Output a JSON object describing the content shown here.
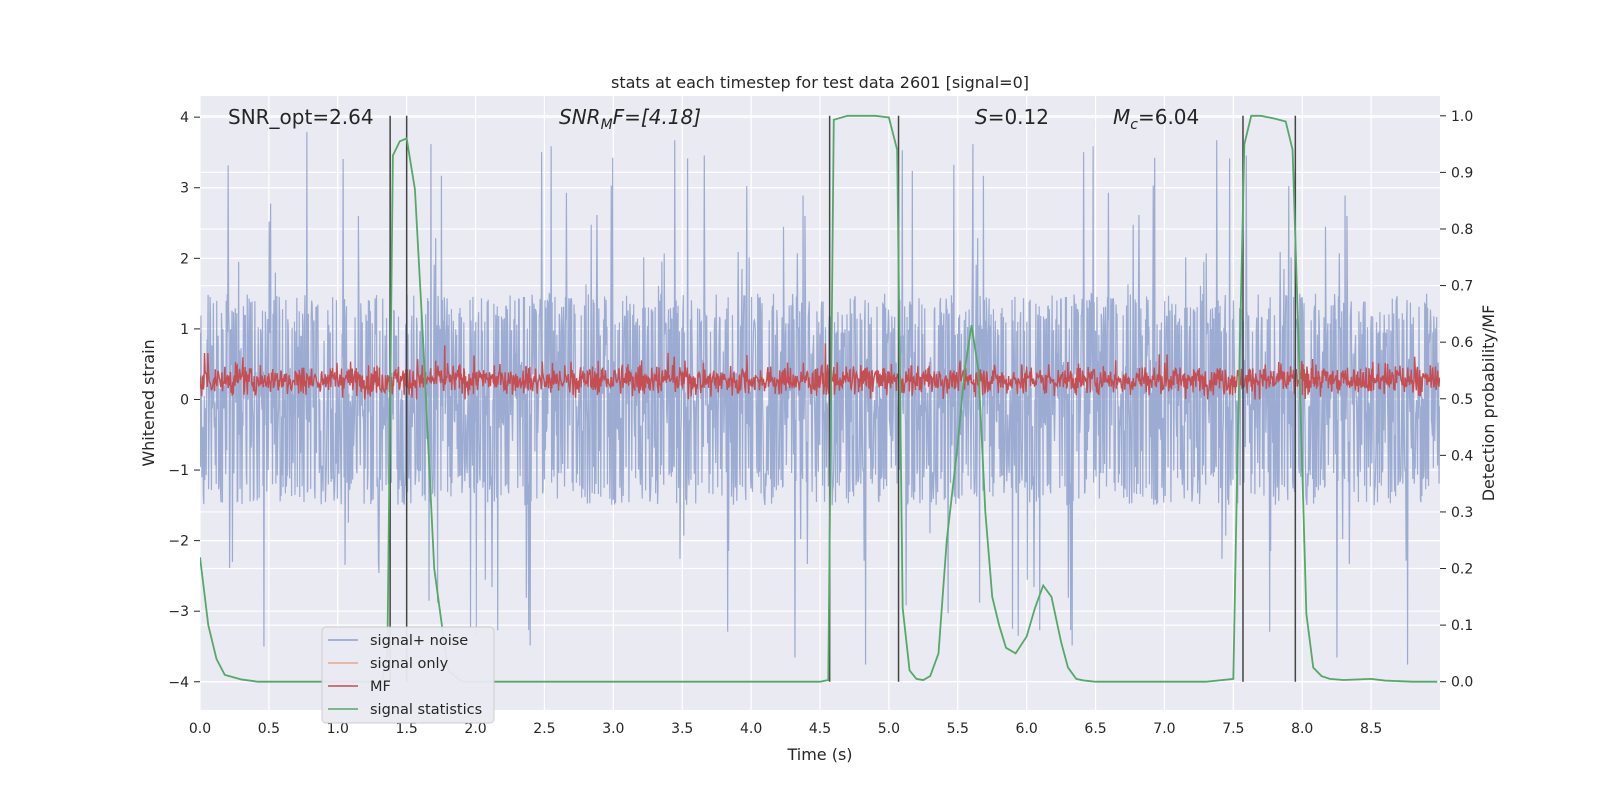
{
  "chart_data": {
    "type": "line",
    "title": "stats at each timestep for test data 2601 [signal=0]",
    "xlabel": "Time (s)",
    "ylabel_left": "Whitened strain",
    "ylabel_right": "Detection probability/MF",
    "xlim": [
      0.0,
      9.0
    ],
    "ylim_left": [
      -4.4,
      4.3
    ],
    "ylim_right": [
      -0.05,
      1.035
    ],
    "grid": true,
    "legend_placement": "lower-left",
    "x_ticks": [
      "0.0",
      "0.5",
      "1.0",
      "1.5",
      "2.0",
      "2.5",
      "3.0",
      "3.5",
      "4.0",
      "4.5",
      "5.0",
      "5.5",
      "6.0",
      "6.5",
      "7.0",
      "7.5",
      "8.0",
      "8.5"
    ],
    "y_ticks_left": [
      "4",
      "3",
      "2",
      "1",
      "0",
      "−1",
      "−2",
      "−3",
      "−4"
    ],
    "y_ticks_right": [
      "1.0",
      "0.9",
      "0.8",
      "0.7",
      "0.6",
      "0.5",
      "0.4",
      "0.3",
      "0.2",
      "0.1",
      "0.0"
    ],
    "annotations": {
      "snr_opt": "SNR_opt=2.64",
      "snr_mf_main": "SNR",
      "snr_mf_sub": "M",
      "snr_mf_rest": "F=[4.18]",
      "s_main": "S",
      "s_rest": "=0.12",
      "mc_main": "M",
      "mc_sub": "c",
      "mc_rest": "=6.04"
    },
    "series": [
      {
        "name": "signal+ noise",
        "color": "#8da0cb",
        "axis": "left",
        "envelope": {
          "center": 0.0,
          "typical_abs_max": 1.5,
          "spike_max": 3.9,
          "spike_min": -3.95
        }
      },
      {
        "name": "signal only",
        "color": "#e8a888",
        "axis": "left"
      },
      {
        "name": "MF",
        "color": "#c44e52",
        "axis": "left",
        "envelope": {
          "center": 0.28,
          "typical_low": 0.05,
          "typical_high": 0.7,
          "max": 1.0
        }
      },
      {
        "name": "signal statistics",
        "color": "#55a868",
        "axis": "right",
        "x": [
          0.0,
          0.06,
          0.12,
          0.18,
          0.3,
          0.42,
          0.6,
          0.9,
          1.2,
          1.32,
          1.36,
          1.4,
          1.45,
          1.5,
          1.56,
          1.62,
          1.7,
          1.8,
          1.9,
          2.0,
          3.0,
          4.0,
          4.5,
          4.56,
          4.6,
          4.7,
          4.9,
          5.0,
          5.06,
          5.1,
          5.15,
          5.2,
          5.25,
          5.3,
          5.36,
          5.42,
          5.5,
          5.55,
          5.6,
          5.65,
          5.7,
          5.75,
          5.8,
          5.85,
          5.92,
          6.0,
          6.06,
          6.12,
          6.18,
          6.25,
          6.3,
          6.36,
          6.42,
          6.5,
          6.7,
          7.0,
          7.3,
          7.5,
          7.53,
          7.58,
          7.63,
          7.7,
          7.8,
          7.88,
          7.93,
          7.98,
          8.03,
          8.08,
          8.14,
          8.2,
          8.3,
          8.5,
          8.6,
          8.8,
          8.98
        ],
        "values": [
          0.22,
          0.1,
          0.04,
          0.012,
          0.004,
          0.0,
          0.0,
          0.0,
          0.0,
          0.0,
          0.05,
          0.93,
          0.955,
          0.96,
          0.87,
          0.6,
          0.2,
          0.02,
          0.0,
          0.0,
          0.0,
          0.0,
          0.0,
          0.003,
          0.993,
          1.0,
          1.0,
          0.997,
          0.94,
          0.13,
          0.02,
          0.005,
          0.003,
          0.01,
          0.05,
          0.25,
          0.42,
          0.55,
          0.63,
          0.55,
          0.3,
          0.15,
          0.1,
          0.06,
          0.05,
          0.08,
          0.13,
          0.17,
          0.15,
          0.07,
          0.025,
          0.005,
          0.002,
          0.0,
          0.0,
          0.0,
          0.0,
          0.005,
          0.4,
          0.95,
          1.0,
          1.0,
          0.995,
          0.99,
          0.94,
          0.55,
          0.12,
          0.025,
          0.01,
          0.005,
          0.003,
          0.005,
          0.002,
          0.0,
          0.0
        ]
      }
    ],
    "vertical_lines": [
      {
        "x": 1.38,
        "color": "#444444"
      },
      {
        "x": 1.5,
        "color": "#444444"
      },
      {
        "x": 4.57,
        "color": "#444444"
      },
      {
        "x": 5.07,
        "color": "#444444"
      },
      {
        "x": 7.57,
        "color": "#444444"
      },
      {
        "x": 7.95,
        "color": "#444444"
      }
    ]
  }
}
